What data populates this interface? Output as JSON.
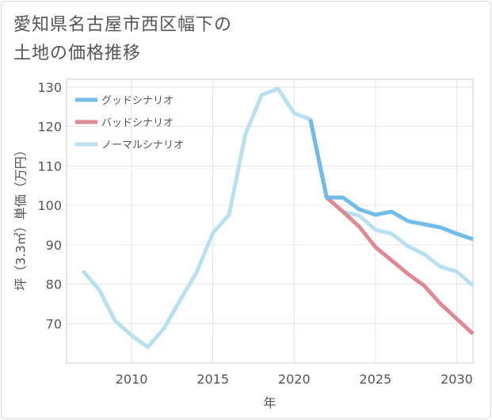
{
  "chart_data": {
    "type": "line",
    "title_lines": [
      "愛知県名古屋市西区幅下の",
      "土地の価格推移"
    ],
    "xlabel": "年",
    "ylabel": "坪（3.3㎡）単価（万円）",
    "xlim": [
      2006,
      2031
    ],
    "ylim": [
      60,
      132
    ],
    "x_ticks": [
      2010,
      2015,
      2020,
      2025,
      2030
    ],
    "y_ticks": [
      70,
      80,
      90,
      100,
      110,
      120,
      130
    ],
    "grid": true,
    "legend_position": "top-left",
    "series": [
      {
        "name": "グッドシナリオ",
        "color": "#72bcea",
        "x": [
          2021,
          2022,
          2023,
          2024,
          2025,
          2026,
          2027,
          2028,
          2029,
          2030,
          2031
        ],
        "y": [
          121.8,
          102.0,
          102.0,
          99.0,
          97.6,
          98.4,
          96.0,
          95.2,
          94.4,
          92.8,
          91.4
        ]
      },
      {
        "name": "バッドシナリオ",
        "color": "#dd8a92",
        "x": [
          2021,
          2022,
          2023,
          2024,
          2025,
          2026,
          2027,
          2028,
          2029,
          2030,
          2031
        ],
        "y": [
          121.8,
          102.0,
          98.4,
          94.6,
          89.4,
          86.0,
          82.6,
          79.6,
          75.0,
          71.2,
          67.4
        ]
      },
      {
        "name": "ノーマルシナリオ",
        "color": "#b9e0ef",
        "x": [
          2007,
          2008,
          2009,
          2010,
          2011,
          2012,
          2013,
          2014,
          2015,
          2016,
          2017,
          2018,
          2019,
          2020,
          2021,
          2022,
          2023,
          2024,
          2025,
          2026,
          2027,
          2028,
          2029,
          2030,
          2031
        ],
        "y": [
          83.4,
          78.6,
          70.6,
          67.0,
          64.0,
          68.8,
          76.0,
          83.0,
          93.0,
          97.6,
          118.0,
          128.0,
          129.6,
          123.4,
          121.8,
          102.0,
          98.4,
          97.4,
          93.8,
          92.8,
          89.6,
          87.6,
          84.4,
          83.2,
          79.6
        ]
      }
    ]
  }
}
